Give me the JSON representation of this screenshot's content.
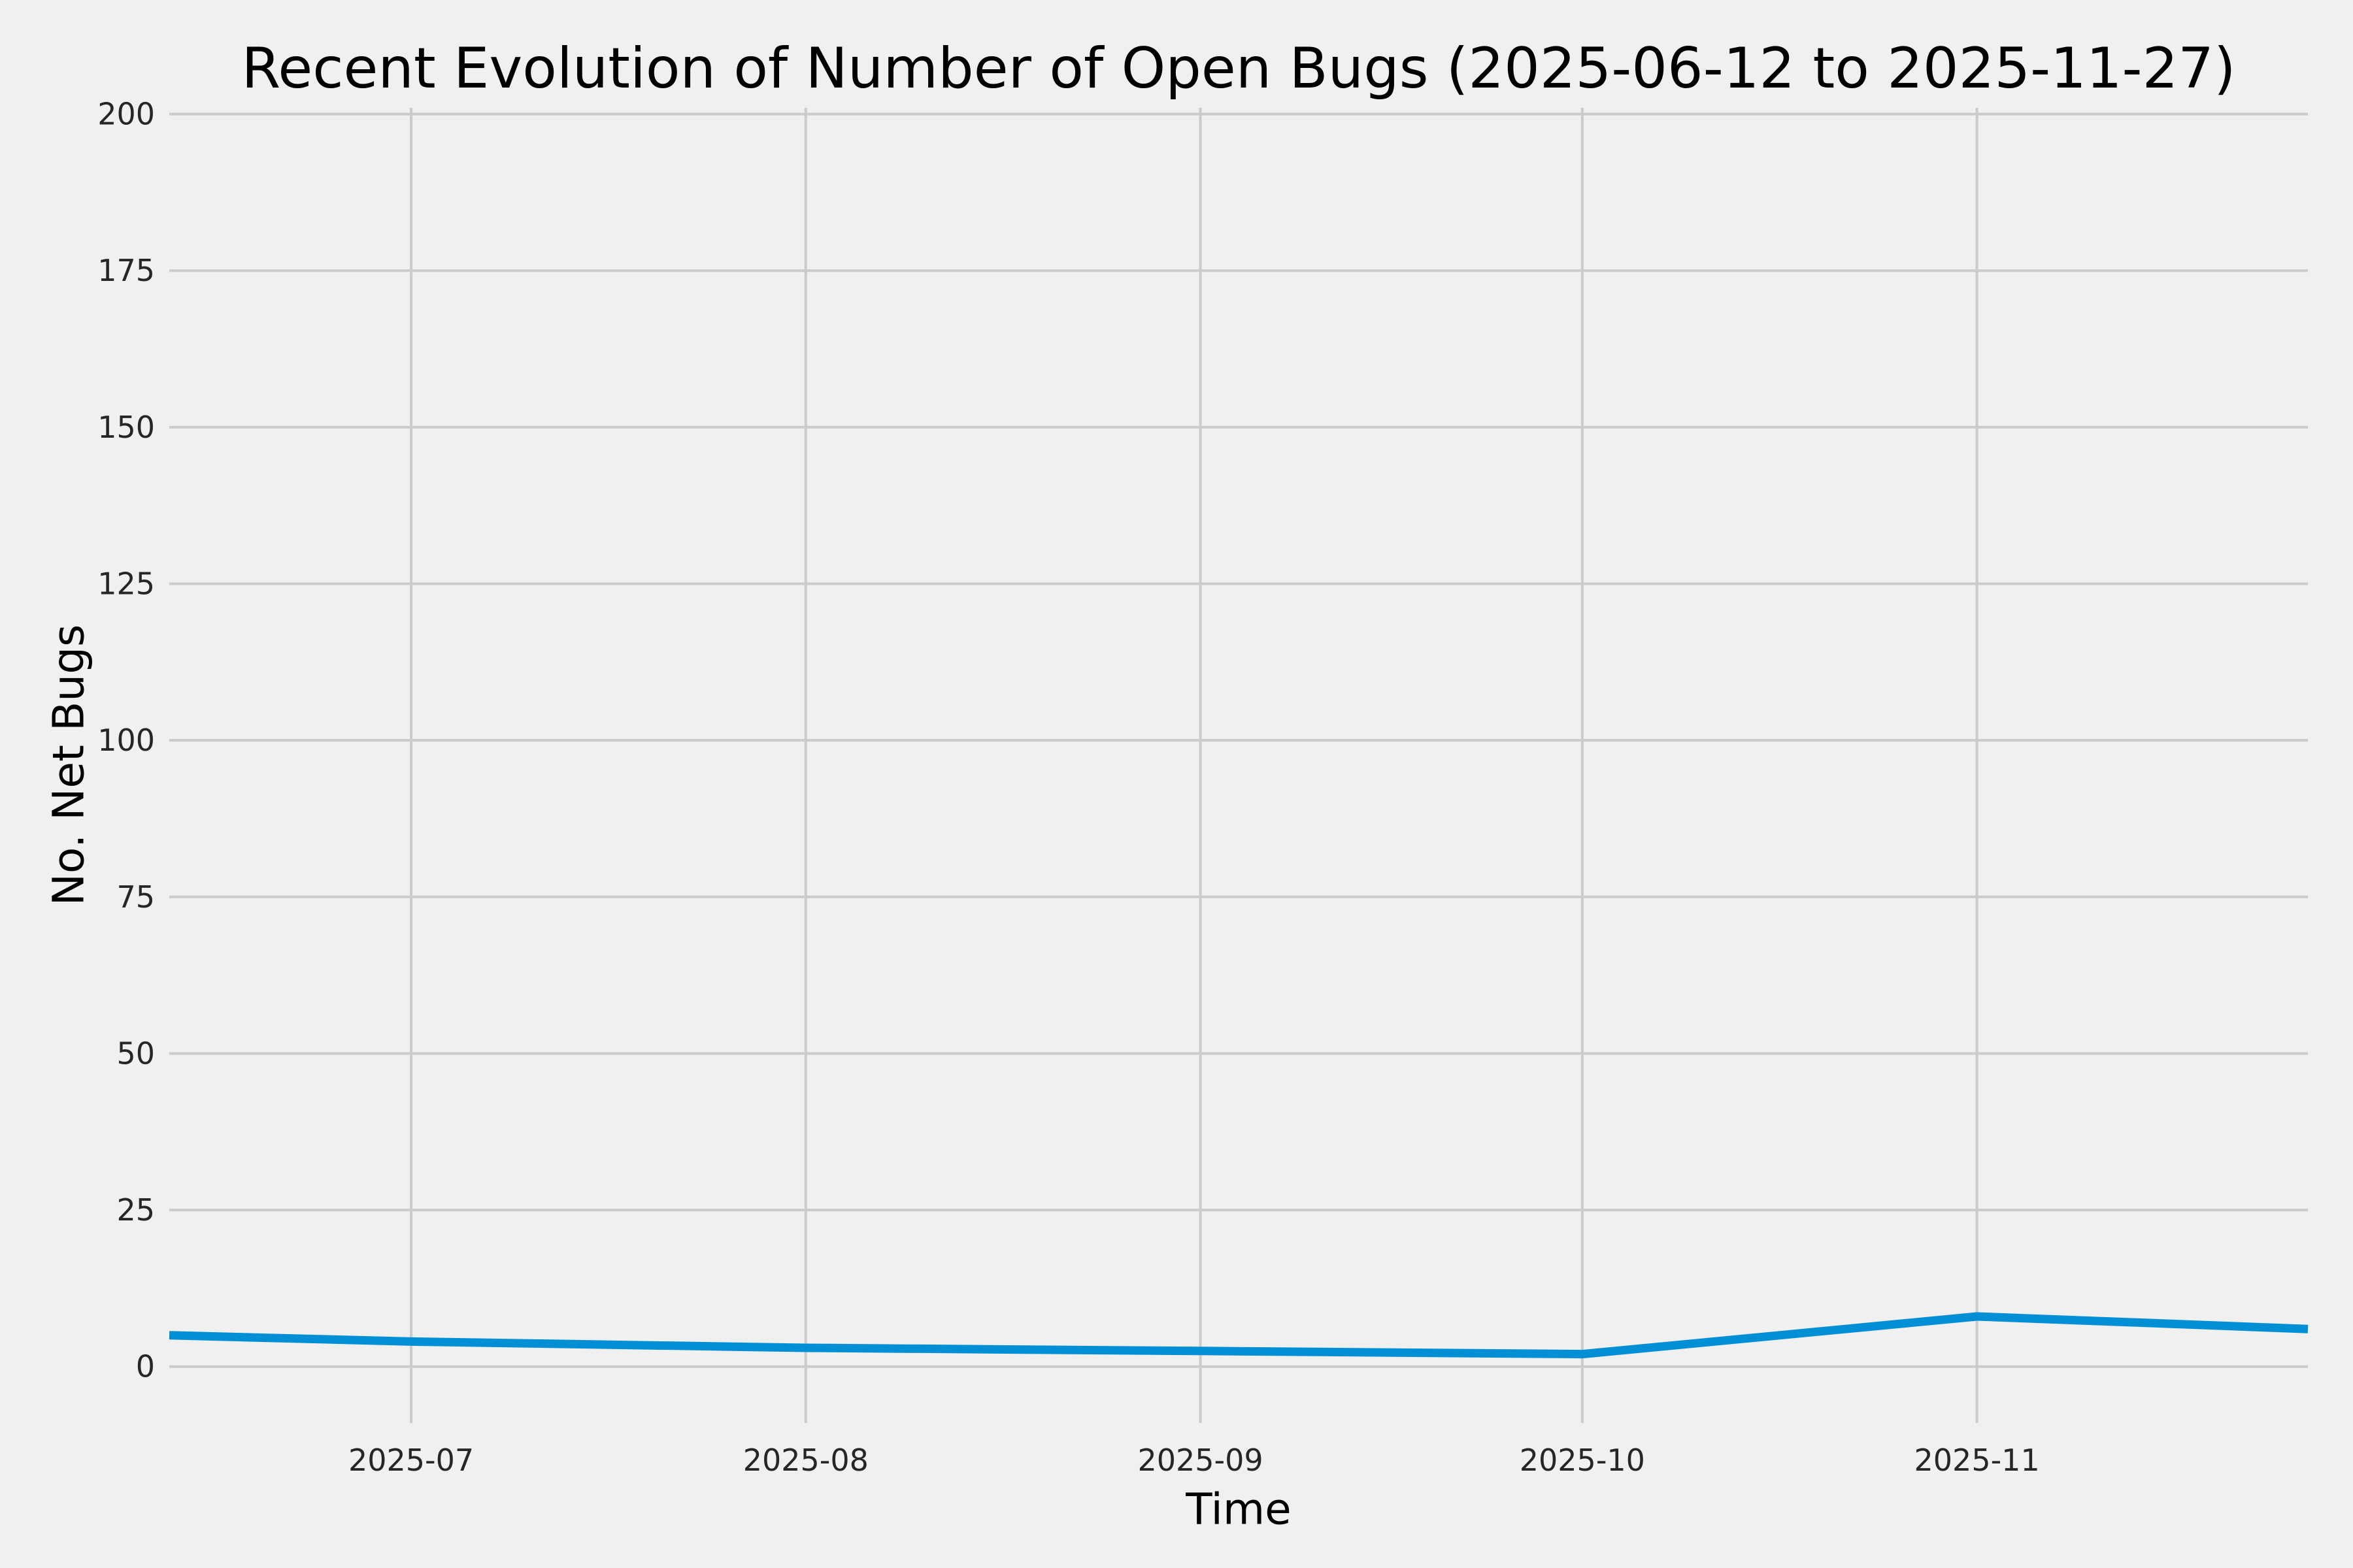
{
  "figure": {
    "background_color": "#f0f0f0",
    "grid_color": "#cbcbcb",
    "text_color": "#000000"
  },
  "chart_data": {
    "type": "line",
    "title": "Recent Evolution of Number of Open Bugs (2025-06-12 to 2025-11-27)",
    "xlabel": "Time",
    "ylabel": "No. Net Bugs",
    "grid": true,
    "legend": false,
    "x_range": [
      "2025-06-12",
      "2025-11-27"
    ],
    "ylim": [
      -9,
      201
    ],
    "yticks": [
      0,
      25,
      50,
      75,
      100,
      125,
      150,
      175,
      200
    ],
    "xticks": [
      {
        "label": "2025-07",
        "date": "2025-07-01"
      },
      {
        "label": "2025-08",
        "date": "2025-08-01"
      },
      {
        "label": "2025-09",
        "date": "2025-09-01"
      },
      {
        "label": "2025-10",
        "date": "2025-10-01"
      },
      {
        "label": "2025-11",
        "date": "2025-11-01"
      }
    ],
    "series": [
      {
        "name": "Open Bugs",
        "color": "#008fd5",
        "x": [
          "2025-06-12",
          "2025-07-01",
          "2025-08-01",
          "2025-09-01",
          "2025-10-01",
          "2025-11-01",
          "2025-11-27"
        ],
        "values": [
          5,
          4,
          3,
          2.5,
          2,
          8,
          6
        ]
      }
    ]
  }
}
